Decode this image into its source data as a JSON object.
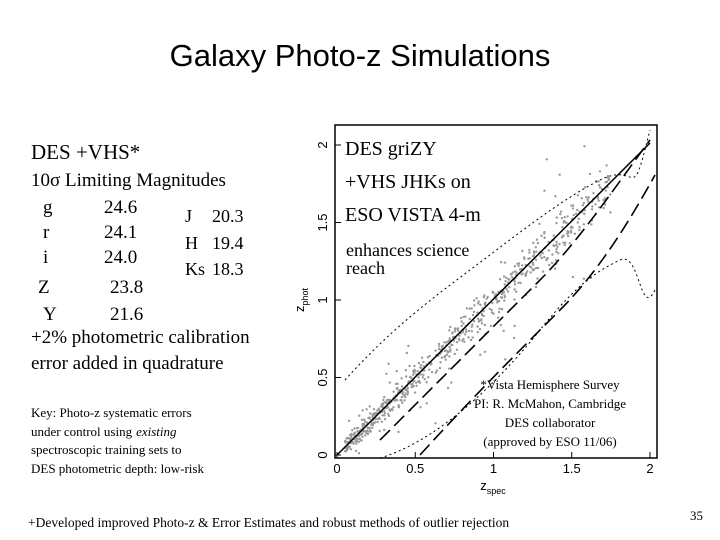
{
  "title": "Galaxy Photo-z Simulations",
  "left": {
    "heading": {
      "des": "DES",
      "vhs": "+VHS*"
    },
    "subheading": "10σ Limiting Magnitudes",
    "des_bands": [
      {
        "band": "g",
        "mag": "24.6"
      },
      {
        "band": "r",
        "mag": "24.1"
      },
      {
        "band": "i",
        "mag": "24.0"
      },
      {
        "band": "Z",
        "mag": "23.8"
      },
      {
        "band": "Y",
        "mag": "21.6"
      }
    ],
    "vhs_bands": [
      {
        "band": "J",
        "mag": "20.3"
      },
      {
        "band": "H",
        "mag": "19.4"
      },
      {
        "band": "Ks",
        "mag": "18.3"
      }
    ],
    "calibration": [
      "+2% photometric calibration",
      "error added in quadrature"
    ],
    "key": [
      [
        "Key: Photo-z systematic errors"
      ],
      [
        "under control using",
        "existing"
      ],
      [
        "spectroscopic training sets to"
      ],
      [
        "DES photometric depth: low-risk"
      ]
    ]
  },
  "figure": {
    "xticks": [
      0,
      0.5,
      1,
      1.5,
      2
    ],
    "yticks": [
      0,
      0.5,
      1,
      1.5,
      2
    ],
    "x_label": {
      "symbol": "z",
      "subscript": "spec"
    },
    "y_label": {
      "symbol": "z",
      "subscript": "phot"
    },
    "overlay": [
      "DES griZY",
      "+VHS JHKs on",
      "ESO VISTA 4-m",
      "enhances science",
      "reach"
    ],
    "footnote": [
      "*Vista Hemisphere Survey",
      "PI: R. McMahon, Cambridge",
      "DES collaborator",
      "(approved by ESO 11/06)"
    ]
  },
  "footer": "+Developed improved Photo-z & Error Estimates and robust methods of outlier rejection",
  "page_number": "35"
}
